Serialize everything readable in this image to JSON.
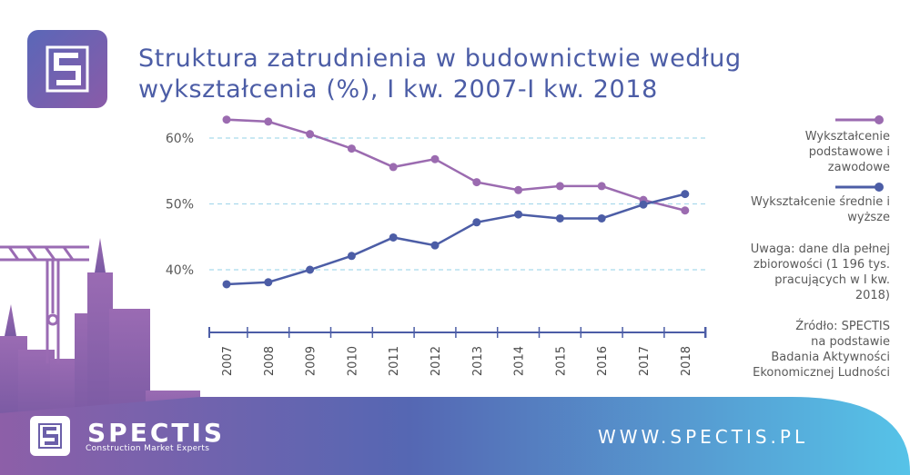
{
  "header": {
    "title_line1": "Struktura zatrudnienia w budownictwie według",
    "title_line2": "wykształcenia (%), I kw. 2007-I kw. 2018"
  },
  "legend": {
    "series1_label": [
      "Wykształcenie",
      "podstawowe i",
      "zawodowe"
    ],
    "series2_label": [
      "Wykształcenie średnie i",
      "wyższe"
    ],
    "note": [
      "Uwaga: dane dla pełnej",
      "zbiorowości (1 196 tys.",
      "pracujących w I kw.",
      "2018)"
    ],
    "source": [
      "Źródło: SPECTIS",
      "na podstawie",
      "Badania Aktywności",
      "Ekonomicznej Ludności"
    ]
  },
  "footer": {
    "brand": "SPECTIS",
    "tagline": "Construction Market Experts",
    "website": "WWW.SPECTIS.PL"
  },
  "colors": {
    "series1": "#9b6bb0",
    "series2": "#4c5da6",
    "grid": "#a9d9ec",
    "axis": "#4c5da6"
  },
  "chart_data": {
    "type": "line",
    "categories": [
      "2007",
      "2008",
      "2009",
      "2010",
      "2011",
      "2012",
      "2013",
      "2014",
      "2015",
      "2016",
      "2017",
      "2018"
    ],
    "y_ticks": [
      "40%",
      "50%",
      "60%"
    ],
    "ylim": [
      31,
      65
    ],
    "series": [
      {
        "name": "Wykształcenie podstawowe i zawodowe",
        "color": "#9b6bb0",
        "values": [
          62.8,
          62.5,
          60.6,
          58.4,
          55.6,
          56.8,
          53.3,
          52.1,
          52.7,
          52.7,
          50.6,
          49.0
        ]
      },
      {
        "name": "Wykształcenie średnie i wyższe",
        "color": "#4c5da6",
        "values": [
          37.8,
          38.1,
          40.0,
          42.1,
          44.9,
          43.7,
          47.2,
          48.4,
          47.8,
          47.8,
          49.9,
          51.5
        ]
      }
    ]
  }
}
